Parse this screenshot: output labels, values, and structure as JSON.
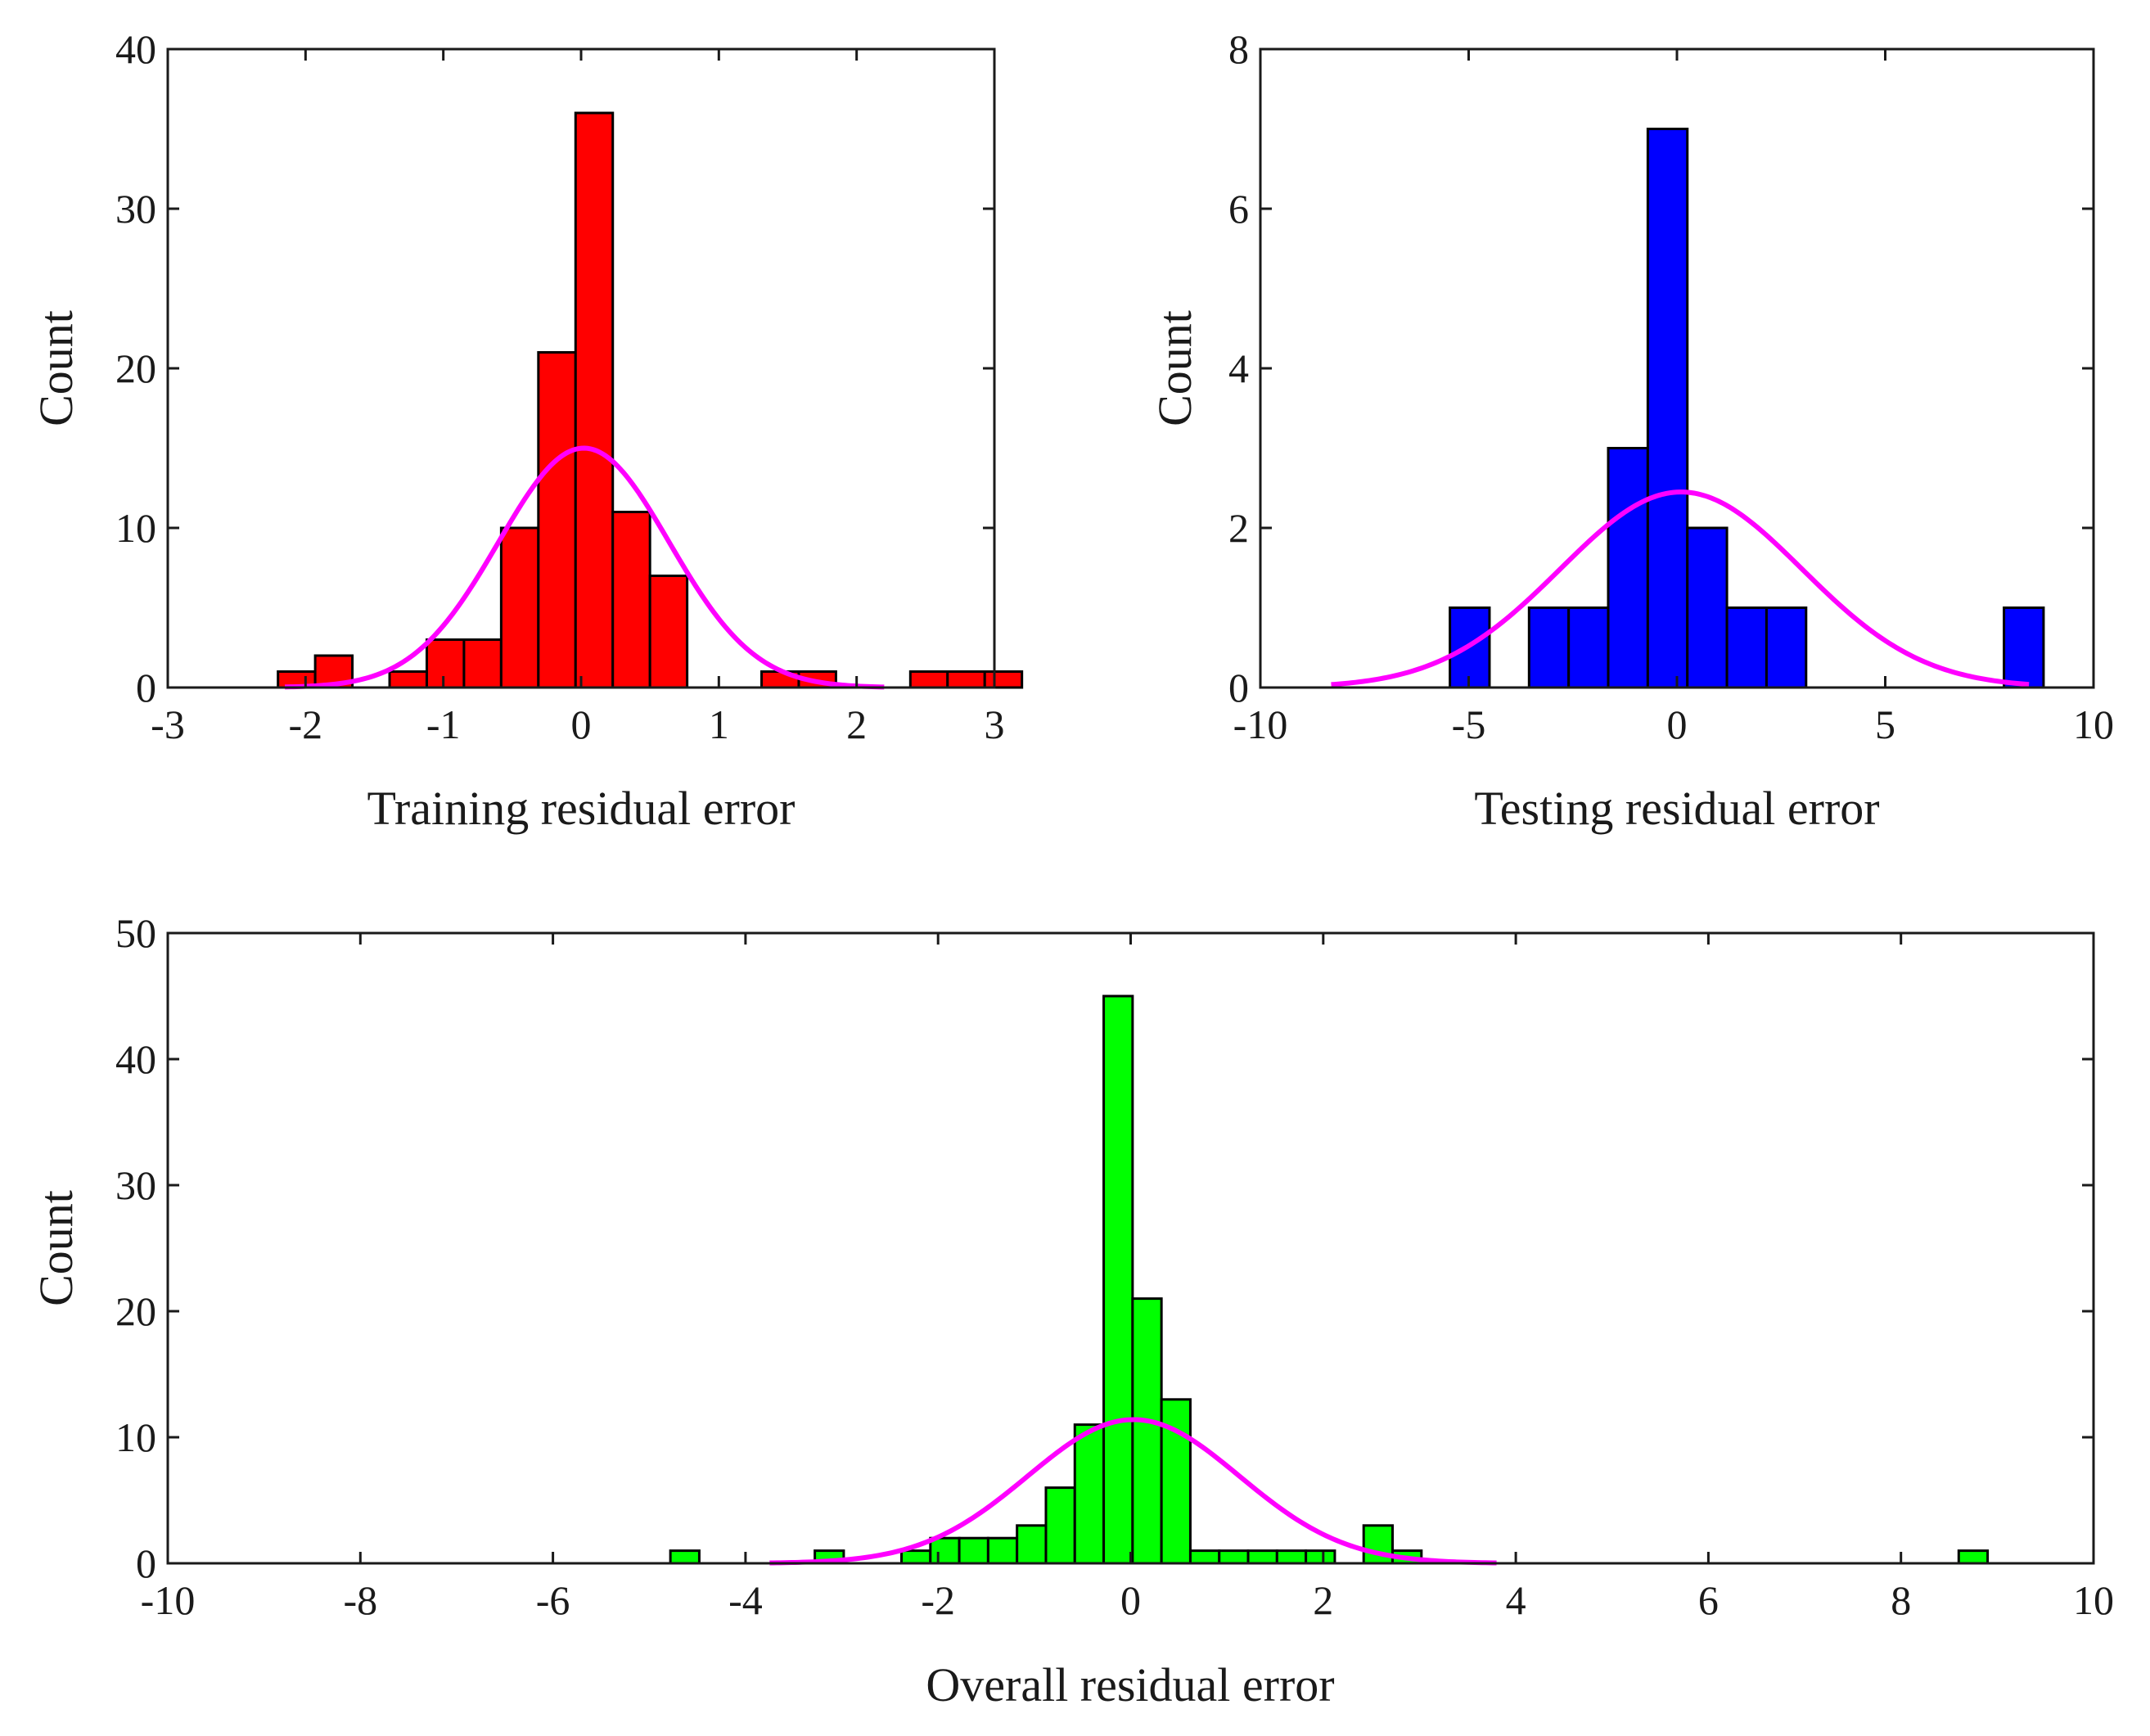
{
  "chart_data": [
    {
      "id": "training",
      "type": "histogram",
      "xlabel": "Training residual error",
      "ylabel": "Count",
      "xlim": [
        -3,
        3
      ],
      "ylim": [
        0,
        40
      ],
      "xticks": [
        -3,
        -2,
        -1,
        0,
        1,
        2,
        3
      ],
      "xtick_labels": [
        "-3",
        "-2",
        "-1",
        "0",
        "1",
        "2",
        "3"
      ],
      "yticks": [
        0,
        10,
        20,
        30,
        40
      ],
      "ytick_labels": [
        "0",
        "10",
        "20",
        "30",
        "40"
      ],
      "bar_color": "#ff0000",
      "curve_color": "#ff00ff",
      "bin_width": 0.27,
      "bins": [
        {
          "start": -2.2,
          "count": 1
        },
        {
          "start": -1.93,
          "count": 2
        },
        {
          "start": -1.39,
          "count": 1
        },
        {
          "start": -1.12,
          "count": 3
        },
        {
          "start": -0.85,
          "count": 3
        },
        {
          "start": -0.58,
          "count": 10
        },
        {
          "start": -0.31,
          "count": 21
        },
        {
          "start": -0.04,
          "count": 36
        },
        {
          "start": 0.23,
          "count": 11
        },
        {
          "start": 0.5,
          "count": 7
        },
        {
          "start": 1.31,
          "count": 1
        },
        {
          "start": 1.58,
          "count": 1
        },
        {
          "start": 2.39,
          "count": 1
        },
        {
          "start": 2.66,
          "count": 1
        },
        {
          "start": 2.93,
          "count": 1
        }
      ],
      "fit": {
        "mean": 0.02,
        "std": 0.62,
        "peak": 15,
        "xmin": -2.15,
        "xmax": 2.2
      }
    },
    {
      "id": "testing",
      "type": "histogram",
      "xlabel": "Testing residual error",
      "ylabel": "Count",
      "xlim": [
        -10,
        10
      ],
      "ylim": [
        0,
        8
      ],
      "xticks": [
        -10,
        -5,
        0,
        5,
        10
      ],
      "xtick_labels": [
        "-10",
        "-5",
        "0",
        "5",
        "10"
      ],
      "yticks": [
        0,
        2,
        4,
        6,
        8
      ],
      "ytick_labels": [
        "0",
        "2",
        "4",
        "6",
        "8"
      ],
      "bar_color": "#0000ff",
      "curve_color": "#ff00ff",
      "bin_width": 0.95,
      "bins": [
        {
          "start": -5.45,
          "count": 1
        },
        {
          "start": -3.55,
          "count": 1
        },
        {
          "start": -2.6,
          "count": 1
        },
        {
          "start": -1.65,
          "count": 3
        },
        {
          "start": -0.7,
          "count": 7
        },
        {
          "start": 0.25,
          "count": 2
        },
        {
          "start": 1.2,
          "count": 1
        },
        {
          "start": 2.15,
          "count": 1
        },
        {
          "start": 7.85,
          "count": 1
        }
      ],
      "fit": {
        "mean": 0.1,
        "std": 2.9,
        "peak": 2.45,
        "xmin": -8.3,
        "xmax": 8.45
      }
    },
    {
      "id": "overall",
      "type": "histogram",
      "xlabel": "Overall residual error",
      "ylabel": "Count",
      "xlim": [
        -10,
        10
      ],
      "ylim": [
        0,
        50
      ],
      "xticks": [
        -10,
        -8,
        -6,
        -4,
        -2,
        0,
        2,
        4,
        6,
        8,
        10
      ],
      "xtick_labels": [
        "-10",
        "-8",
        "-6",
        "-4",
        "-2",
        "0",
        "2",
        "4",
        "6",
        "8",
        "10"
      ],
      "yticks": [
        0,
        10,
        20,
        30,
        40,
        50
      ],
      "ytick_labels": [
        "0",
        "10",
        "20",
        "30",
        "40",
        "50"
      ],
      "bar_color": "#00ff00",
      "curve_color": "#ff00ff",
      "bin_width": 0.3,
      "bins": [
        {
          "start": -4.78,
          "count": 1
        },
        {
          "start": -3.28,
          "count": 1
        },
        {
          "start": -2.38,
          "count": 1
        },
        {
          "start": -2.08,
          "count": 2
        },
        {
          "start": -1.78,
          "count": 2
        },
        {
          "start": -1.48,
          "count": 2
        },
        {
          "start": -1.18,
          "count": 3
        },
        {
          "start": -0.88,
          "count": 6
        },
        {
          "start": -0.58,
          "count": 11
        },
        {
          "start": -0.28,
          "count": 45
        },
        {
          "start": 0.02,
          "count": 21
        },
        {
          "start": 0.32,
          "count": 13
        },
        {
          "start": 0.62,
          "count": 1
        },
        {
          "start": 0.92,
          "count": 1
        },
        {
          "start": 1.22,
          "count": 1
        },
        {
          "start": 1.52,
          "count": 1
        },
        {
          "start": 1.82,
          "count": 1
        },
        {
          "start": 2.42,
          "count": 3
        },
        {
          "start": 2.72,
          "count": 1
        },
        {
          "start": 8.6,
          "count": 1
        }
      ],
      "fit": {
        "mean": 0.03,
        "std": 1.1,
        "peak": 11.4,
        "xmin": -3.75,
        "xmax": 3.8
      }
    }
  ]
}
